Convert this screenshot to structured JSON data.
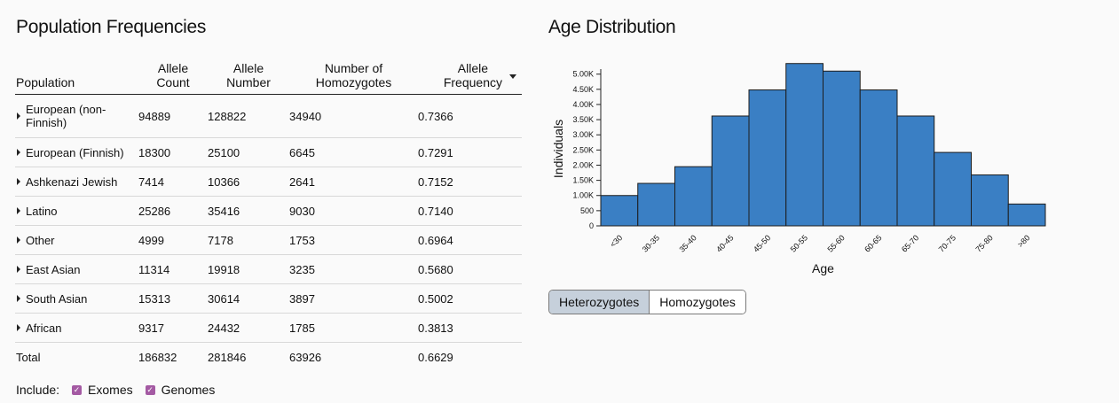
{
  "population_section": {
    "title": "Population Frequencies",
    "columns": {
      "population": "Population",
      "allele_count": "Allele\nCount",
      "allele_number": "Allele\nNumber",
      "homozygotes": "Number of\nHomozygotes",
      "allele_frequency": "Allele\nFrequency"
    },
    "rows": [
      {
        "population": "European (non-\nFinnish)",
        "allele_count": "94889",
        "allele_number": "128822",
        "homozygotes": "34940",
        "allele_frequency": "0.7366"
      },
      {
        "population": "European (Finnish)",
        "allele_count": "18300",
        "allele_number": "25100",
        "homozygotes": "6645",
        "allele_frequency": "0.7291"
      },
      {
        "population": "Ashkenazi Jewish",
        "allele_count": "7414",
        "allele_number": "10366",
        "homozygotes": "2641",
        "allele_frequency": "0.7152"
      },
      {
        "population": "Latino",
        "allele_count": "25286",
        "allele_number": "35416",
        "homozygotes": "9030",
        "allele_frequency": "0.7140"
      },
      {
        "population": "Other",
        "allele_count": "4999",
        "allele_number": "7178",
        "homozygotes": "1753",
        "allele_frequency": "0.6964"
      },
      {
        "population": "East Asian",
        "allele_count": "11314",
        "allele_number": "19918",
        "homozygotes": "3235",
        "allele_frequency": "0.5680"
      },
      {
        "population": "South Asian",
        "allele_count": "15313",
        "allele_number": "30614",
        "homozygotes": "3897",
        "allele_frequency": "0.5002"
      },
      {
        "population": "African",
        "allele_count": "9317",
        "allele_number": "24432",
        "homozygotes": "1785",
        "allele_frequency": "0.3813"
      }
    ],
    "total": {
      "population": "Total",
      "allele_count": "186832",
      "allele_number": "281846",
      "homozygotes": "63926",
      "allele_frequency": "0.6629"
    },
    "include": {
      "label": "Include:",
      "exomes": "Exomes",
      "genomes": "Genomes",
      "checkbox_color": "#a45aa3"
    }
  },
  "age_section": {
    "title": "Age Distribution",
    "toggle": {
      "heterozygotes": "Heterozygotes",
      "homozygotes": "Homozygotes",
      "selected": "Heterozygotes"
    }
  },
  "chart_data": {
    "type": "bar",
    "title": "Age Distribution",
    "xlabel": "Age",
    "ylabel": "Individuals",
    "categories": [
      "<30",
      "30-35",
      "35-40",
      "40-45",
      "45-50",
      "50-55",
      "55-60",
      "60-65",
      "65-70",
      "70-75",
      "75-80",
      ">80"
    ],
    "values": [
      1000,
      1400,
      1950,
      3620,
      4480,
      5350,
      5100,
      4480,
      3620,
      2420,
      1680,
      720
    ],
    "ylim": [
      0,
      5400
    ],
    "yticks": [
      0,
      500,
      1000,
      1500,
      2000,
      2500,
      3000,
      3500,
      4000,
      4500,
      5000
    ],
    "ytick_labels": [
      "0",
      "500",
      "1.00K",
      "1.50K",
      "2.00K",
      "2.50K",
      "3.00K",
      "3.50K",
      "4.00K",
      "4.50K",
      "5.00K"
    ],
    "bar_color": "#3a7fc4",
    "bar_stroke": "#1d1d1d"
  }
}
